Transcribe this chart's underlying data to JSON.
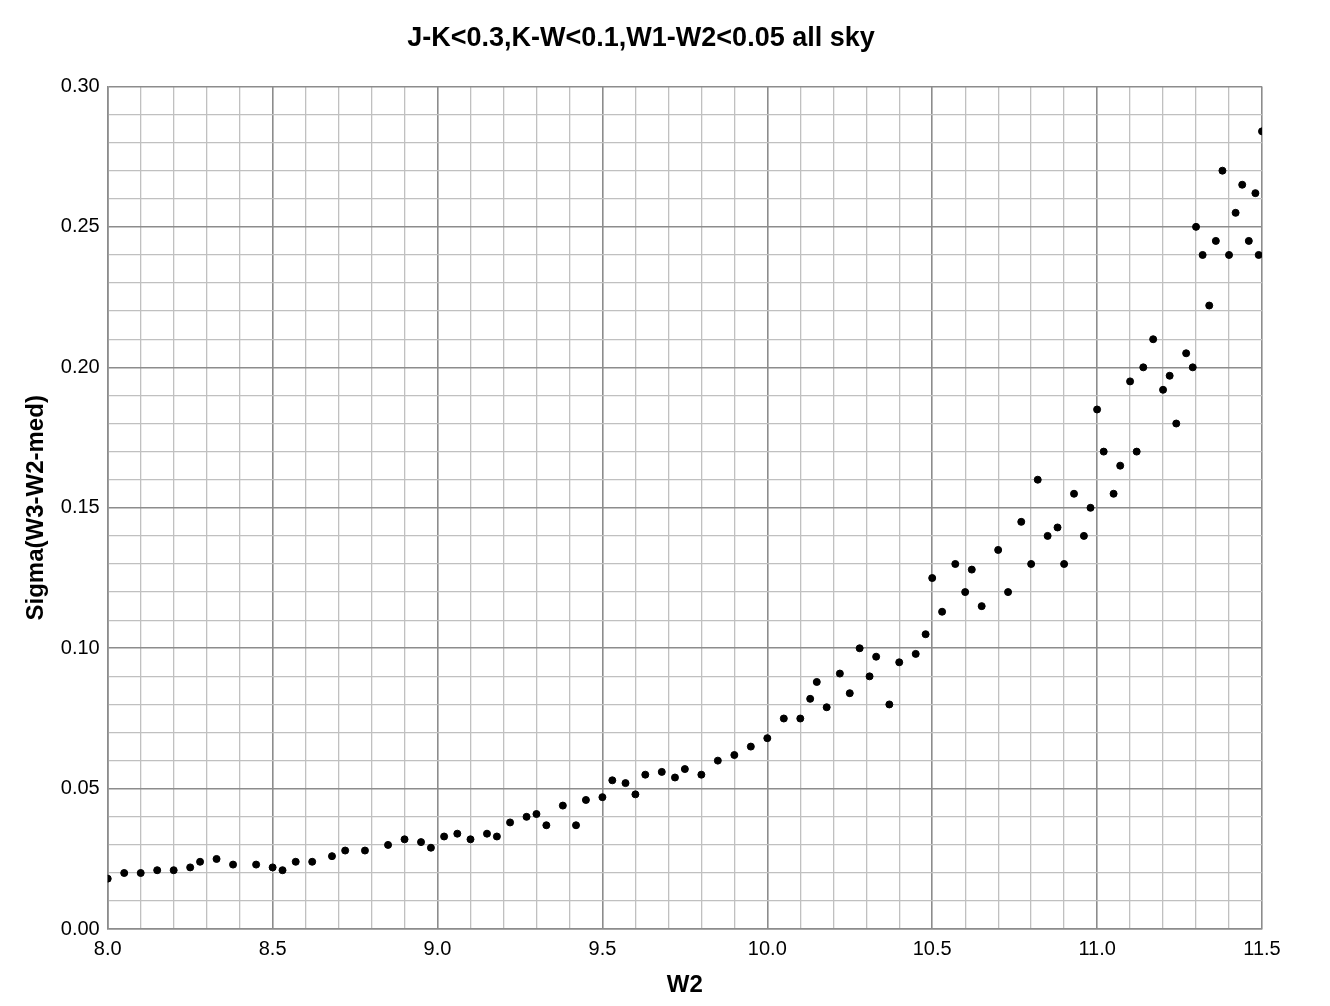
{
  "chart_data": {
    "type": "scatter",
    "title": "J-K<0.3,K-W<0.1,W1-W2<0.05 all sky",
    "xlabel": "W2",
    "ylabel": "Sigma(W3-W2-med)",
    "marker": "circle",
    "grid": true,
    "legend": false,
    "xlim": [
      8.0,
      11.5
    ],
    "ylim": [
      0,
      0.3
    ],
    "xticks": [
      {
        "value": 8.0,
        "label": "8.0"
      },
      {
        "value": 8.1,
        "label": null
      },
      {
        "value": 8.2,
        "label": null
      },
      {
        "value": 8.3,
        "label": null
      },
      {
        "value": 8.4,
        "label": null
      },
      {
        "value": 8.5,
        "label": "8.5"
      },
      {
        "value": 8.6,
        "label": null
      },
      {
        "value": 8.7,
        "label": null
      },
      {
        "value": 8.8,
        "label": null
      },
      {
        "value": 8.9,
        "label": null
      },
      {
        "value": 9.0,
        "label": "9.0"
      },
      {
        "value": 9.1,
        "label": null
      },
      {
        "value": 9.2,
        "label": null
      },
      {
        "value": 9.3,
        "label": null
      },
      {
        "value": 9.4,
        "label": null
      },
      {
        "value": 9.5,
        "label": "9.5"
      },
      {
        "value": 9.6,
        "label": null
      },
      {
        "value": 9.7,
        "label": null
      },
      {
        "value": 9.8,
        "label": null
      },
      {
        "value": 9.9,
        "label": null
      },
      {
        "value": 10.0,
        "label": "10.0"
      },
      {
        "value": 10.1,
        "label": null
      },
      {
        "value": 10.2,
        "label": null
      },
      {
        "value": 10.3,
        "label": null
      },
      {
        "value": 10.4,
        "label": null
      },
      {
        "value": 10.5,
        "label": "10.5"
      },
      {
        "value": 10.6,
        "label": null
      },
      {
        "value": 10.7,
        "label": null
      },
      {
        "value": 10.8,
        "label": null
      },
      {
        "value": 10.9,
        "label": null
      },
      {
        "value": 11.0,
        "label": "11.0"
      },
      {
        "value": 11.1,
        "label": null
      },
      {
        "value": 11.2,
        "label": null
      },
      {
        "value": 11.3,
        "label": null
      },
      {
        "value": 11.4,
        "label": null
      },
      {
        "value": 11.5,
        "label": "11.5"
      }
    ],
    "yticks": [
      {
        "value": 0,
        "label": "0.00"
      },
      {
        "value": 0.01,
        "label": null
      },
      {
        "value": 0.02,
        "label": null
      },
      {
        "value": 0.03,
        "label": null
      },
      {
        "value": 0.04,
        "label": null
      },
      {
        "value": 0.05,
        "label": "0.05"
      },
      {
        "value": 0.06,
        "label": null
      },
      {
        "value": 0.07,
        "label": null
      },
      {
        "value": 0.08,
        "label": null
      },
      {
        "value": 0.09,
        "label": null
      },
      {
        "value": 0.1,
        "label": "0.10"
      },
      {
        "value": 0.11,
        "label": null
      },
      {
        "value": 0.12,
        "label": null
      },
      {
        "value": 0.13,
        "label": null
      },
      {
        "value": 0.14,
        "label": null
      },
      {
        "value": 0.15,
        "label": "0.15"
      },
      {
        "value": 0.16,
        "label": null
      },
      {
        "value": 0.17,
        "label": null
      },
      {
        "value": 0.18,
        "label": null
      },
      {
        "value": 0.19,
        "label": null
      },
      {
        "value": 0.2,
        "label": "0.20"
      },
      {
        "value": 0.21,
        "label": null
      },
      {
        "value": 0.22,
        "label": null
      },
      {
        "value": 0.23,
        "label": null
      },
      {
        "value": 0.24,
        "label": null
      },
      {
        "value": 0.25,
        "label": "0.25"
      },
      {
        "value": 0.26,
        "label": null
      },
      {
        "value": 0.27,
        "label": null
      },
      {
        "value": 0.28,
        "label": null
      },
      {
        "value": 0.29,
        "label": null
      },
      {
        "value": 0.3,
        "label": "0.30"
      }
    ],
    "series": [
      {
        "color": "#000000",
        "x": [
          8.0,
          8.05,
          8.1,
          8.15,
          8.2,
          8.25,
          8.28,
          8.33,
          8.38,
          8.45,
          8.5,
          8.53,
          8.57,
          8.62,
          8.68,
          8.72,
          8.78,
          8.85,
          8.9,
          8.95,
          8.98,
          9.02,
          9.06,
          9.1,
          9.15,
          9.18,
          9.22,
          9.27,
          9.3,
          9.33,
          9.38,
          9.42,
          9.45,
          9.5,
          9.53,
          9.57,
          9.6,
          9.63,
          9.68,
          9.72,
          9.75,
          9.8,
          9.85,
          9.9,
          9.95,
          10.0,
          10.05,
          10.1,
          10.13,
          10.15,
          10.18,
          10.22,
          10.25,
          10.28,
          10.31,
          10.33,
          10.37,
          10.4,
          10.45,
          10.48,
          10.5,
          10.53,
          10.57,
          10.6,
          10.62,
          10.65,
          10.7,
          10.73,
          10.77,
          10.8,
          10.82,
          10.85,
          10.88,
          10.9,
          10.93,
          10.96,
          10.98,
          11.0,
          11.02,
          11.05,
          11.07,
          11.1,
          11.12,
          11.14,
          11.17,
          11.2,
          11.22,
          11.24,
          11.27,
          11.29,
          11.3,
          11.32,
          11.34,
          11.36,
          11.38,
          11.4,
          11.42,
          11.44,
          11.46,
          11.48,
          11.49,
          11.5
        ],
        "values": [
          0.018,
          0.02,
          0.02,
          0.021,
          0.021,
          0.022,
          0.024,
          0.025,
          0.023,
          0.023,
          0.022,
          0.021,
          0.024,
          0.024,
          0.026,
          0.028,
          0.028,
          0.03,
          0.032,
          0.031,
          0.029,
          0.033,
          0.034,
          0.032,
          0.034,
          0.033,
          0.038,
          0.04,
          0.041,
          0.037,
          0.044,
          0.037,
          0.046,
          0.047,
          0.053,
          0.052,
          0.048,
          0.055,
          0.056,
          0.054,
          0.057,
          0.055,
          0.06,
          0.062,
          0.065,
          0.068,
          0.075,
          0.075,
          0.082,
          0.088,
          0.079,
          0.091,
          0.084,
          0.1,
          0.09,
          0.097,
          0.08,
          0.095,
          0.098,
          0.105,
          0.125,
          0.113,
          0.13,
          0.12,
          0.128,
          0.115,
          0.135,
          0.12,
          0.145,
          0.13,
          0.16,
          0.14,
          0.143,
          0.13,
          0.155,
          0.14,
          0.15,
          0.185,
          0.17,
          0.155,
          0.165,
          0.195,
          0.17,
          0.2,
          0.21,
          0.192,
          0.197,
          0.18,
          0.205,
          0.2,
          0.25,
          0.24,
          0.222,
          0.245,
          0.27,
          0.24,
          0.255,
          0.265,
          0.245,
          0.262,
          0.24,
          0.284
        ]
      }
    ]
  }
}
